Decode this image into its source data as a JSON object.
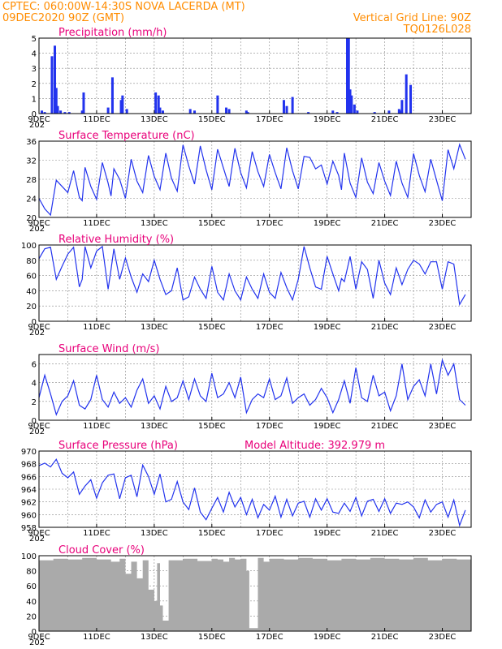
{
  "header": {
    "line1": "CPTEC:   060:00W-14:30S   NOVA LACERDA (MT)",
    "line2_left": "09DEC2020 90Z (GMT)",
    "line2_right": "Vertical Grid Line: 90Z",
    "line3_right": "TQ0126L028"
  },
  "colors": {
    "header": "#ff8c00",
    "title": "#e8007a",
    "series": "#2233ee",
    "cloud": "#aaaaaa",
    "grid": "#888888"
  },
  "x_axis": {
    "start": "09DEC2020",
    "days": 15,
    "tick_labels": [
      "9DEC",
      "11DEC",
      "13DEC",
      "15DEC",
      "17DEC",
      "19DEC",
      "21DEC",
      "23DEC"
    ],
    "tick_days": [
      0,
      2,
      4,
      6,
      8,
      10,
      12,
      14
    ],
    "year_fragment": "202"
  },
  "chart_data": [
    {
      "type": "bar",
      "title": "Precipitation (mm/h)",
      "ylim": [
        0,
        5
      ],
      "yticks": [
        0,
        1,
        2,
        3,
        4,
        5
      ],
      "x_days": [
        0.1,
        0.2,
        0.45,
        0.55,
        0.6,
        0.65,
        0.75,
        0.9,
        1.05,
        1.5,
        1.55,
        2.4,
        2.55,
        2.85,
        2.9,
        3.05,
        4.05,
        4.15,
        4.2,
        4.3,
        5.25,
        5.4,
        6.2,
        6.5,
        6.6,
        7.2,
        7.25,
        8.5,
        8.6,
        8.8,
        9.35,
        10.2,
        10.35,
        10.7,
        10.75,
        10.8,
        10.85,
        10.95,
        11.05,
        11.65,
        12.15,
        12.5,
        12.55,
        12.6,
        12.75,
        12.9
      ],
      "values": [
        0.2,
        0.1,
        3.8,
        4.5,
        1.7,
        0.5,
        0.2,
        0.1,
        0.1,
        0.2,
        1.4,
        0.4,
        2.4,
        0.9,
        1.2,
        0.3,
        1.4,
        1.2,
        0.4,
        0.2,
        0.3,
        0.2,
        1.2,
        0.4,
        0.3,
        0.2,
        0.1,
        0.9,
        0.5,
        1.1,
        0.1,
        0.2,
        0.1,
        5,
        5,
        1.6,
        1.2,
        0.6,
        0.2,
        0.1,
        0.2,
        0.3,
        0.2,
        0.9,
        2.6,
        1.9
      ]
    },
    {
      "type": "line",
      "title": "Surface Temperature (nC)",
      "ylim": [
        20,
        36
      ],
      "yticks": [
        20,
        24,
        28,
        32,
        36
      ],
      "x_days": [
        0,
        0.2,
        0.4,
        0.6,
        0.8,
        1,
        1.2,
        1.4,
        1.5,
        1.6,
        1.8,
        2,
        2.2,
        2.4,
        2.5,
        2.6,
        2.8,
        3,
        3.2,
        3.4,
        3.6,
        3.8,
        4,
        4.2,
        4.4,
        4.6,
        4.8,
        5,
        5.2,
        5.4,
        5.6,
        5.8,
        6,
        6.2,
        6.4,
        6.6,
        6.8,
        7,
        7.2,
        7.4,
        7.6,
        7.8,
        8,
        8.2,
        8.4,
        8.6,
        8.8,
        9,
        9.2,
        9.4,
        9.6,
        9.8,
        10,
        10.2,
        10.4,
        10.5,
        10.6,
        10.8,
        11,
        11.2,
        11.4,
        11.6,
        11.8,
        12,
        12.2,
        12.4,
        12.6,
        12.8,
        13,
        13.2,
        13.4,
        13.6,
        13.8,
        14,
        14.2,
        14.4,
        14.6,
        14.8
      ],
      "values": [
        24,
        21.8,
        20.5,
        27.8,
        26.5,
        25.2,
        29.8,
        24.2,
        23.5,
        30.5,
        26.5,
        23.8,
        31.5,
        27.2,
        24.5,
        30.2,
        28,
        24,
        32.2,
        27.6,
        25.2,
        33,
        28.6,
        25.8,
        33.5,
        28.2,
        25.5,
        35.2,
        30.8,
        27,
        35,
        30,
        25.8,
        34.3,
        30.4,
        26.5,
        34.5,
        29.4,
        26.2,
        33.8,
        29.6,
        26.5,
        33.2,
        29.4,
        26,
        34.6,
        29.8,
        26,
        32.8,
        32.6,
        30.2,
        31,
        27,
        31.8,
        28.8,
        25.8,
        33.5,
        27.2,
        24.2,
        32.5,
        27.4,
        25,
        31.5,
        27.6,
        24.6,
        31.8,
        27.2,
        24.2,
        33.4,
        28.8,
        25.4,
        32.2,
        27.8,
        23.5,
        34.2,
        30.2,
        35.3,
        32.2
      ]
    },
    {
      "type": "line",
      "title": "Relative Humidity (%)",
      "ylim": [
        0,
        100
      ],
      "yticks": [
        0,
        20,
        40,
        60,
        80,
        100
      ],
      "x_days": [
        0,
        0.2,
        0.4,
        0.6,
        0.8,
        1,
        1.2,
        1.4,
        1.5,
        1.6,
        1.8,
        2,
        2.2,
        2.4,
        2.5,
        2.6,
        2.8,
        3,
        3.2,
        3.4,
        3.6,
        3.8,
        4,
        4.2,
        4.4,
        4.6,
        4.8,
        5,
        5.2,
        5.4,
        5.6,
        5.8,
        6,
        6.2,
        6.4,
        6.6,
        6.8,
        7,
        7.2,
        7.4,
        7.6,
        7.8,
        8,
        8.2,
        8.4,
        8.6,
        8.8,
        9,
        9.2,
        9.4,
        9.6,
        9.8,
        10,
        10.2,
        10.4,
        10.5,
        10.6,
        10.8,
        11,
        11.2,
        11.4,
        11.6,
        11.8,
        12,
        12.2,
        12.4,
        12.6,
        12.8,
        13,
        13.2,
        13.4,
        13.6,
        13.8,
        14,
        14.2,
        14.4,
        14.6,
        14.8
      ],
      "values": [
        82,
        95,
        97,
        55,
        72,
        88,
        97,
        45,
        55,
        98,
        70,
        92,
        98,
        42,
        68,
        95,
        55,
        83,
        58,
        38,
        62,
        52,
        80,
        55,
        35,
        40,
        70,
        28,
        32,
        58,
        42,
        30,
        72,
        38,
        28,
        62,
        40,
        28,
        58,
        42,
        30,
        62,
        38,
        30,
        64,
        44,
        28,
        55,
        98,
        70,
        45,
        42,
        85,
        62,
        40,
        56,
        52,
        85,
        42,
        78,
        68,
        30,
        80,
        50,
        35,
        70,
        48,
        68,
        80,
        75,
        62,
        78,
        78,
        42,
        78,
        75,
        22,
        35
      ]
    },
    {
      "type": "line",
      "title": "Surface Wind (m/s)",
      "ylim": [
        0,
        7
      ],
      "yticks": [
        0,
        2,
        4,
        6
      ],
      "x_days": [
        0,
        0.2,
        0.4,
        0.6,
        0.8,
        1,
        1.2,
        1.4,
        1.6,
        1.8,
        2,
        2.2,
        2.4,
        2.6,
        2.8,
        3,
        3.2,
        3.4,
        3.6,
        3.8,
        4,
        4.2,
        4.4,
        4.6,
        4.8,
        5,
        5.2,
        5.4,
        5.6,
        5.8,
        6,
        6.2,
        6.4,
        6.6,
        6.8,
        7,
        7.2,
        7.4,
        7.6,
        7.8,
        8,
        8.2,
        8.4,
        8.6,
        8.8,
        9,
        9.2,
        9.4,
        9.6,
        9.8,
        10,
        10.2,
        10.4,
        10.6,
        10.8,
        11,
        11.2,
        11.4,
        11.6,
        11.8,
        12,
        12.2,
        12.4,
        12.6,
        12.8,
        13,
        13.2,
        13.4,
        13.6,
        13.8,
        14,
        14.2,
        14.4,
        14.6,
        14.8
      ],
      "values": [
        2.4,
        4.8,
        2.8,
        0.6,
        2,
        2.6,
        4.2,
        1.6,
        1.2,
        2.2,
        4.8,
        2.2,
        1.4,
        3,
        1.8,
        2.4,
        1.4,
        3.2,
        4.4,
        1.8,
        2.6,
        1.2,
        3.6,
        2,
        2.4,
        4.2,
        2.2,
        4.4,
        2.6,
        2,
        5,
        2.4,
        2.8,
        4,
        2.4,
        4.6,
        0.8,
        2.2,
        2.8,
        2.4,
        4.4,
        2.2,
        2.6,
        4.5,
        1.8,
        2.4,
        2.8,
        1.6,
        2.2,
        3.4,
        2.4,
        0.8,
        2.2,
        4.2,
        1.8,
        5.6,
        2.4,
        2,
        4.8,
        2.6,
        3,
        1,
        2.6,
        6,
        2.2,
        3.6,
        4.3,
        2.6,
        6,
        2.8,
        6.4,
        4.8,
        6,
        2.2,
        1.6
      ]
    },
    {
      "type": "line",
      "title": "Surface Pressure (hPa)",
      "annotation": "Model Altitude: 392.979 m",
      "ylim": [
        958,
        970
      ],
      "yticks": [
        958,
        960,
        962,
        964,
        966,
        968,
        970
      ],
      "x_days": [
        0,
        0.2,
        0.4,
        0.6,
        0.8,
        1,
        1.2,
        1.4,
        1.6,
        1.8,
        2,
        2.2,
        2.4,
        2.6,
        2.8,
        3,
        3.2,
        3.4,
        3.6,
        3.8,
        4,
        4.2,
        4.4,
        4.6,
        4.8,
        5,
        5.2,
        5.4,
        5.6,
        5.8,
        6,
        6.2,
        6.4,
        6.6,
        6.8,
        7,
        7.2,
        7.4,
        7.6,
        7.8,
        8,
        8.2,
        8.4,
        8.6,
        8.8,
        9,
        9.2,
        9.4,
        9.6,
        9.8,
        10,
        10.2,
        10.4,
        10.6,
        10.8,
        11,
        11.2,
        11.4,
        11.6,
        11.8,
        12,
        12.2,
        12.4,
        12.6,
        12.8,
        13,
        13.2,
        13.4,
        13.6,
        13.8,
        14,
        14.2,
        14.4,
        14.6,
        14.8
      ],
      "values": [
        967.7,
        968.1,
        967.5,
        968.7,
        966.5,
        965.8,
        966.7,
        963.2,
        964.5,
        965.5,
        962.6,
        965,
        966.2,
        966.4,
        962.5,
        965.8,
        966.2,
        962.8,
        967.8,
        966,
        963.2,
        966.4,
        962,
        962.4,
        965.2,
        962,
        960.8,
        964.2,
        960.4,
        959.2,
        961,
        962.7,
        960.4,
        963.5,
        961.2,
        962.7,
        960,
        962.4,
        959.5,
        961.6,
        960.7,
        962.9,
        959.6,
        962.4,
        959.8,
        961.8,
        962.1,
        959.6,
        962.5,
        960.7,
        962.5,
        960.4,
        960.2,
        961.8,
        960.5,
        962.7,
        959.8,
        962.1,
        962.4,
        960.5,
        962.5,
        960.2,
        961.8,
        961.6,
        962,
        961.2,
        959.5,
        962.3,
        960.4,
        961.6,
        962,
        959.6,
        962.3,
        958.3,
        960.7
      ]
    },
    {
      "type": "area",
      "title": "Cloud Cover (%)",
      "ylim": [
        0,
        100
      ],
      "yticks": [
        0,
        20,
        40,
        60,
        80,
        100
      ],
      "x_days": [
        0,
        0.5,
        1,
        1.5,
        2,
        2.5,
        2.8,
        3,
        3.2,
        3.4,
        3.6,
        3.8,
        4,
        4.1,
        4.2,
        4.3,
        4.5,
        5,
        5.5,
        6,
        6.2,
        6.4,
        6.6,
        6.8,
        7,
        7.2,
        7.3,
        7.4,
        7.5,
        7.6,
        7.8,
        8,
        8.5,
        9,
        9.5,
        10,
        10.5,
        11,
        11.5,
        12,
        12.5,
        13,
        13.5,
        14,
        14.5,
        15
      ],
      "values": [
        94,
        96,
        95,
        97,
        95,
        92,
        96,
        76,
        92,
        70,
        94,
        55,
        40,
        90,
        34,
        14,
        94,
        96,
        93,
        96,
        95,
        92,
        97,
        95,
        96,
        80,
        4,
        4,
        4,
        97,
        92,
        96,
        95,
        97,
        96,
        94,
        96,
        95,
        97,
        96,
        95,
        97,
        94,
        96,
        95,
        97
      ]
    }
  ]
}
